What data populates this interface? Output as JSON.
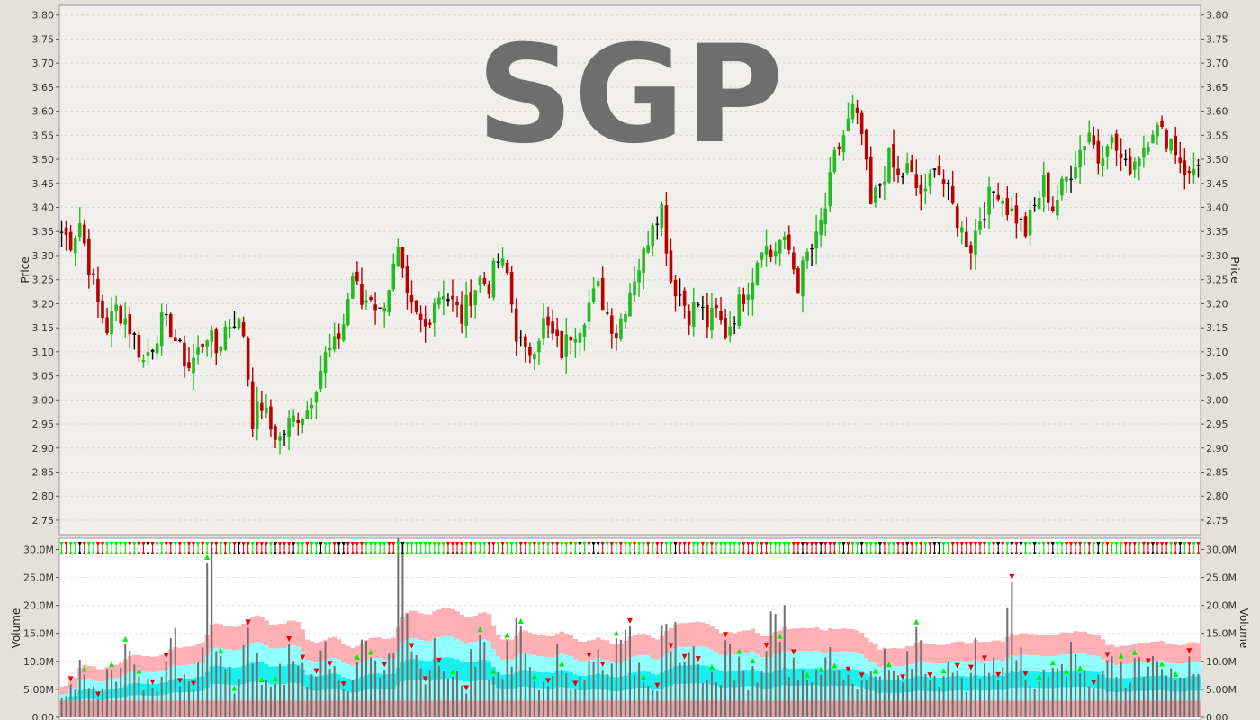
{
  "chart_data": [
    {
      "type": "ohlc-bar",
      "title": "SGP",
      "ylabel": "Price",
      "ylim": [
        2.72,
        3.82
      ],
      "yticks": [
        "3.80",
        "3.75",
        "3.70",
        "3.65",
        "3.60",
        "3.55",
        "3.50",
        "3.45",
        "3.40",
        "3.35",
        "3.30",
        "3.25",
        "3.20",
        "3.15",
        "3.10",
        "3.05",
        "3.00",
        "2.95",
        "2.90",
        "2.85",
        "2.80",
        "2.75"
      ],
      "colors": {
        "up": "#22bb22",
        "down": "#bb0000",
        "flat": "#000000"
      },
      "series": [
        {
          "name": "close",
          "x": [
            0,
            2,
            4,
            6,
            8,
            10,
            12,
            14,
            16,
            18,
            20,
            22,
            24,
            26,
            28,
            30,
            32,
            34,
            36,
            38,
            40,
            42,
            44,
            46,
            48,
            50,
            52,
            54,
            56,
            58,
            60,
            62,
            64,
            66,
            68,
            70,
            72,
            74,
            76,
            78,
            80,
            82,
            84,
            86,
            88,
            90,
            92,
            94,
            96,
            98,
            100,
            102,
            104,
            106,
            108,
            110,
            112,
            114,
            116,
            118,
            120,
            122,
            124,
            126,
            128,
            130,
            132,
            134,
            136,
            138,
            140,
            142,
            144,
            146,
            148,
            150,
            152,
            154,
            156,
            158,
            160,
            162,
            164,
            166,
            168,
            170,
            172,
            174,
            176,
            178,
            180,
            182,
            184,
            186,
            188,
            190,
            192,
            194,
            196,
            198,
            200,
            202,
            204,
            206,
            208,
            210,
            212,
            214,
            216,
            218,
            220,
            222,
            224,
            226,
            228,
            230,
            232,
            234,
            236,
            238,
            240,
            242,
            244,
            246,
            248,
            250
          ],
          "y": [
            3.35,
            3.33,
            3.37,
            3.28,
            3.2,
            3.15,
            3.19,
            3.17,
            3.13,
            3.08,
            3.12,
            3.16,
            3.15,
            3.1,
            3.07,
            3.1,
            3.14,
            3.1,
            3.15,
            3.17,
            3.14,
            2.96,
            2.99,
            2.94,
            2.92,
            2.95,
            2.97,
            2.98,
            3.04,
            3.09,
            3.11,
            3.16,
            3.26,
            3.2,
            3.22,
            3.18,
            3.24,
            3.3,
            3.2,
            3.17,
            3.15,
            3.21,
            3.23,
            3.2,
            3.17,
            3.22,
            3.25,
            3.24,
            3.29,
            3.26,
            3.14,
            3.09,
            3.12,
            3.16,
            3.13,
            3.1,
            3.14,
            3.16,
            3.2,
            3.23,
            3.18,
            3.14,
            3.2,
            3.26,
            3.3,
            3.38,
            3.4,
            3.25,
            3.22,
            3.18,
            3.2,
            3.16,
            3.18,
            3.14,
            3.18,
            3.22,
            3.26,
            3.33,
            3.3,
            3.33,
            3.31,
            3.24,
            3.3,
            3.33,
            3.4,
            3.5,
            3.55,
            3.6,
            3.55,
            3.4,
            3.45,
            3.5,
            3.46,
            3.48,
            3.44,
            3.42,
            3.5,
            3.45,
            3.4,
            3.35,
            3.32,
            3.38,
            3.42,
            3.44,
            3.4,
            3.38,
            3.35,
            3.4,
            3.45,
            3.4,
            3.44,
            3.48,
            3.52,
            3.56,
            3.5,
            3.55,
            3.52,
            3.48,
            3.5,
            3.53,
            3.57,
            3.55,
            3.54,
            3.5,
            3.46,
            3.5
          ]
        }
      ]
    },
    {
      "type": "bar",
      "ylabel": "Volume",
      "ylim": [
        0,
        32000000
      ],
      "yticks": [
        "30.0M",
        "25.0M",
        "20.0M",
        "15.0M",
        "10.0M",
        "5.00M",
        "0.00"
      ],
      "colors": {
        "volume": "#707070",
        "band_outer": "#ffb0b4",
        "band_mid": "#90ffff",
        "band_inner": "#18f0f0",
        "base": "#e7a2a6",
        "signal_up": "#00ee00",
        "signal_down": "#ee0000"
      },
      "series": [
        {
          "name": "volume",
          "x": [
            0,
            2,
            4,
            6,
            8,
            10,
            12,
            14,
            16,
            18,
            20,
            22,
            24,
            26,
            28,
            30,
            32,
            34,
            36,
            38,
            40,
            42,
            44,
            46,
            48,
            50,
            52,
            54,
            56,
            58,
            60,
            62,
            64,
            66,
            68,
            70,
            72,
            74,
            76,
            78,
            80,
            82,
            84,
            86,
            88,
            90,
            92,
            94,
            96,
            98,
            100,
            102,
            104,
            106,
            108,
            110,
            112,
            114,
            116,
            118,
            120,
            122,
            124,
            126,
            128,
            130,
            132,
            134,
            136,
            138,
            140,
            142,
            144,
            146,
            148,
            150,
            152,
            154,
            156,
            158,
            160,
            162,
            164,
            166,
            168,
            170,
            172,
            174,
            176,
            178,
            180,
            182,
            184,
            186,
            188,
            190,
            192,
            194,
            196,
            198,
            200,
            202,
            204,
            206,
            208,
            210,
            212,
            214,
            216,
            218,
            220,
            222,
            224,
            226,
            228,
            230,
            232,
            234,
            236,
            238,
            240,
            242,
            244,
            246,
            248,
            250
          ],
          "y": [
            4000000,
            6000000,
            12000000,
            8000000,
            5000000,
            13000000,
            9000000,
            14000000,
            11000000,
            7000000,
            5000000,
            12000000,
            18000000,
            8000000,
            6000000,
            15000000,
            28000000,
            13000000,
            9000000,
            7000000,
            16000000,
            11000000,
            8000000,
            6000000,
            9000000,
            13000000,
            10000000,
            8000000,
            12000000,
            14000000,
            10000000,
            7000000,
            9000000,
            15000000,
            11000000,
            8000000,
            13000000,
            32000000,
            17000000,
            12000000,
            9000000,
            14000000,
            11000000,
            8000000,
            7000000,
            12000000,
            15000000,
            10000000,
            9000000,
            13000000,
            24000000,
            11000000,
            8000000,
            9000000,
            12000000,
            10000000,
            7000000,
            9000000,
            11000000,
            13000000,
            10000000,
            22000000,
            15000000,
            11000000,
            9000000,
            7000000,
            24000000,
            16000000,
            9000000,
            12000000,
            10000000,
            8000000,
            9000000,
            14000000,
            10000000,
            8000000,
            9000000,
            12000000,
            30000000,
            19000000,
            12000000,
            10000000,
            9000000,
            8000000,
            13000000,
            11000000,
            9000000,
            8000000,
            7000000,
            10000000,
            12000000,
            9000000,
            8000000,
            11000000,
            17000000,
            10000000,
            9000000,
            12000000,
            8000000,
            7000000,
            13000000,
            9000000,
            10000000,
            11000000,
            26000000,
            12000000,
            9000000,
            8000000,
            10000000,
            12000000,
            9000000,
            14000000,
            11000000,
            8000000,
            9000000,
            12000000,
            10000000,
            8000000,
            13000000,
            9000000,
            10000000,
            11000000,
            8000000,
            9000000,
            12000000,
            10000000
          ]
        }
      ]
    }
  ]
}
